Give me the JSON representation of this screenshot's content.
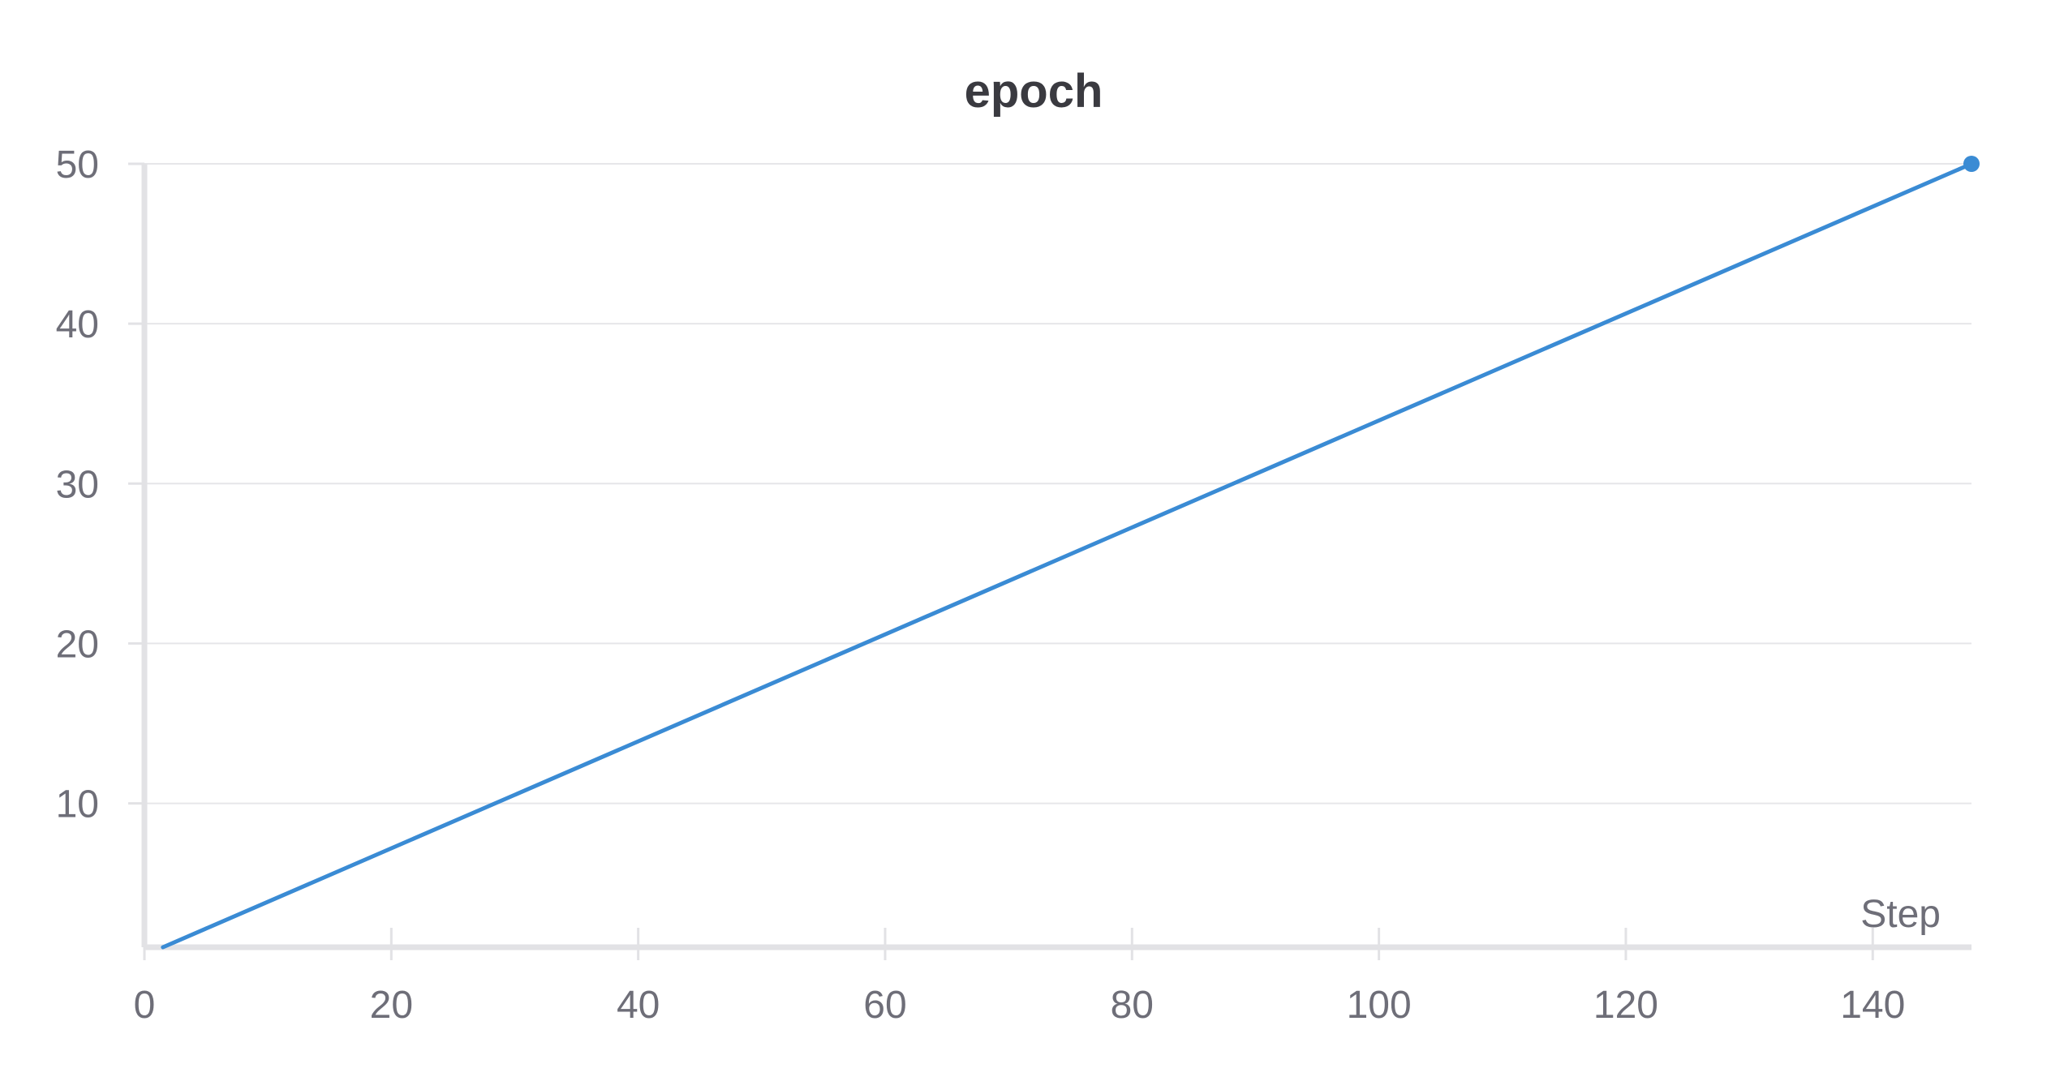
{
  "chart_data": {
    "type": "line",
    "title": "epoch",
    "xlabel": "Step",
    "ylabel": "",
    "xlim": [
      0,
      148
    ],
    "ylim": [
      1,
      50
    ],
    "x_ticks": [
      0,
      20,
      40,
      60,
      80,
      100,
      120,
      140
    ],
    "y_ticks": [
      10,
      20,
      30,
      40,
      50
    ],
    "grid": true,
    "legend": "none",
    "series": [
      {
        "color": "#3a8bd4",
        "x": [
          1.5,
          148
        ],
        "y": [
          1,
          50
        ],
        "end_marker": true
      }
    ]
  },
  "colors": {
    "series": "#3a8bd4",
    "grid": "#e6e6e9",
    "axis": "#e2e2e5",
    "text": "#6e6e78",
    "title": "#3a3a40"
  }
}
